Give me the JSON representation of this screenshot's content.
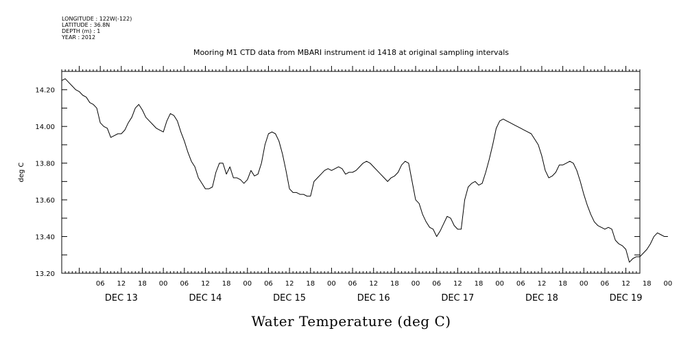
{
  "meta": {
    "longitude": "LONGITUDE : 122W(-122)",
    "latitude": "LATITUDE : 36.8N",
    "depth": "DEPTH (m) : 1",
    "year": "YEAR : 2012"
  },
  "chart_data": {
    "type": "line",
    "title": "Mooring M1 CTD data from MBARI instrument id 1418 at original sampling intervals",
    "ylabel": "deg C",
    "xlabel": "Water Temperature (deg C)",
    "ylim": [
      13.2,
      14.3
    ],
    "xlim_hours": [
      0,
      165
    ],
    "grid": false,
    "x_start": "DEC 12 2012 19:00",
    "y_tick_labels": [
      "13.20",
      "13.40",
      "13.60",
      "13.80",
      "14.00",
      "14.20"
    ],
    "y_ticks": [
      13.2,
      13.4,
      13.6,
      13.8,
      14.0,
      14.2
    ],
    "x_tick_hour_labels": [
      "06",
      "12",
      "18",
      "00",
      "06",
      "12",
      "18",
      "00",
      "06",
      "12",
      "18",
      "00",
      "06",
      "12",
      "18",
      "00",
      "06",
      "12",
      "18",
      "00",
      "06",
      "12",
      "18",
      "00",
      "06",
      "12",
      "18",
      "00"
    ],
    "day_labels": [
      "DEC 13",
      "DEC 14",
      "DEC 15",
      "DEC 16",
      "DEC 17",
      "DEC 18",
      "DEC 19"
    ],
    "series": [
      {
        "points": [
          [
            "DEC 12 19:00",
            14.25
          ],
          [
            "DEC 12 20:00",
            14.26
          ],
          [
            "DEC 12 21:00",
            14.24
          ],
          [
            "DEC 12 22:00",
            14.22
          ],
          [
            "DEC 12 23:00",
            14.2
          ],
          [
            "DEC 13 00:00",
            14.19
          ],
          [
            "DEC 13 01:00",
            14.17
          ],
          [
            "DEC 13 02:00",
            14.16
          ],
          [
            "DEC 13 03:00",
            14.13
          ],
          [
            "DEC 13 04:00",
            14.12
          ],
          [
            "DEC 13 05:00",
            14.1
          ],
          [
            "DEC 13 06:00",
            14.02
          ],
          [
            "DEC 13 07:00",
            14.0
          ],
          [
            "DEC 13 08:00",
            13.99
          ],
          [
            "DEC 13 09:00",
            13.94
          ],
          [
            "DEC 13 10:00",
            13.95
          ],
          [
            "DEC 13 11:00",
            13.96
          ],
          [
            "DEC 13 12:00",
            13.96
          ],
          [
            "DEC 13 13:00",
            13.98
          ],
          [
            "DEC 13 14:00",
            14.02
          ],
          [
            "DEC 13 15:00",
            14.05
          ],
          [
            "DEC 13 16:00",
            14.1
          ],
          [
            "DEC 13 17:00",
            14.12
          ],
          [
            "DEC 13 18:00",
            14.09
          ],
          [
            "DEC 13 19:00",
            14.05
          ],
          [
            "DEC 13 20:00",
            14.03
          ],
          [
            "DEC 13 21:00",
            14.01
          ],
          [
            "DEC 13 22:00",
            13.99
          ],
          [
            "DEC 13 23:00",
            13.98
          ],
          [
            "DEC 14 00:00",
            13.97
          ],
          [
            "DEC 14 01:00",
            14.03
          ],
          [
            "DEC 14 02:00",
            14.07
          ],
          [
            "DEC 14 03:00",
            14.06
          ],
          [
            "DEC 14 04:00",
            14.03
          ],
          [
            "DEC 14 05:00",
            13.97
          ],
          [
            "DEC 14 06:00",
            13.92
          ],
          [
            "DEC 14 07:00",
            13.86
          ],
          [
            "DEC 14 08:00",
            13.81
          ],
          [
            "DEC 14 09:00",
            13.78
          ],
          [
            "DEC 14 10:00",
            13.72
          ],
          [
            "DEC 14 11:00",
            13.69
          ],
          [
            "DEC 14 12:00",
            13.66
          ],
          [
            "DEC 14 13:00",
            13.66
          ],
          [
            "DEC 14 14:00",
            13.67
          ],
          [
            "DEC 14 15:00",
            13.75
          ],
          [
            "DEC 14 16:00",
            13.8
          ],
          [
            "DEC 14 17:00",
            13.8
          ],
          [
            "DEC 14 18:00",
            13.74
          ],
          [
            "DEC 14 19:00",
            13.78
          ],
          [
            "DEC 14 20:00",
            13.72
          ],
          [
            "DEC 14 21:00",
            13.72
          ],
          [
            "DEC 14 22:00",
            13.71
          ],
          [
            "DEC 14 23:00",
            13.69
          ],
          [
            "DEC 15 00:00",
            13.71
          ],
          [
            "DEC 15 01:00",
            13.76
          ],
          [
            "DEC 15 02:00",
            13.73
          ],
          [
            "DEC 15 03:00",
            13.74
          ],
          [
            "DEC 15 04:00",
            13.8
          ],
          [
            "DEC 15 05:00",
            13.9
          ],
          [
            "DEC 15 06:00",
            13.96
          ],
          [
            "DEC 15 07:00",
            13.97
          ],
          [
            "DEC 15 08:00",
            13.96
          ],
          [
            "DEC 15 09:00",
            13.92
          ],
          [
            "DEC 15 10:00",
            13.85
          ],
          [
            "DEC 15 11:00",
            13.76
          ],
          [
            "DEC 15 12:00",
            13.66
          ],
          [
            "DEC 15 13:00",
            13.64
          ],
          [
            "DEC 15 14:00",
            13.64
          ],
          [
            "DEC 15 15:00",
            13.63
          ],
          [
            "DEC 15 16:00",
            13.63
          ],
          [
            "DEC 15 17:00",
            13.62
          ],
          [
            "DEC 15 18:00",
            13.62
          ],
          [
            "DEC 15 19:00",
            13.7
          ],
          [
            "DEC 15 20:00",
            13.72
          ],
          [
            "DEC 15 21:00",
            13.74
          ],
          [
            "DEC 15 22:00",
            13.76
          ],
          [
            "DEC 15 23:00",
            13.77
          ],
          [
            "DEC 16 00:00",
            13.76
          ],
          [
            "DEC 16 01:00",
            13.77
          ],
          [
            "DEC 16 02:00",
            13.78
          ],
          [
            "DEC 16 03:00",
            13.77
          ],
          [
            "DEC 16 04:00",
            13.74
          ],
          [
            "DEC 16 05:00",
            13.75
          ],
          [
            "DEC 16 06:00",
            13.75
          ],
          [
            "DEC 16 07:00",
            13.76
          ],
          [
            "DEC 16 08:00",
            13.78
          ],
          [
            "DEC 16 09:00",
            13.8
          ],
          [
            "DEC 16 10:00",
            13.81
          ],
          [
            "DEC 16 11:00",
            13.8
          ],
          [
            "DEC 16 12:00",
            13.78
          ],
          [
            "DEC 16 13:00",
            13.76
          ],
          [
            "DEC 16 14:00",
            13.74
          ],
          [
            "DEC 16 15:00",
            13.72
          ],
          [
            "DEC 16 16:00",
            13.7
          ],
          [
            "DEC 16 17:00",
            13.72
          ],
          [
            "DEC 16 18:00",
            13.73
          ],
          [
            "DEC 16 19:00",
            13.75
          ],
          [
            "DEC 16 20:00",
            13.79
          ],
          [
            "DEC 16 21:00",
            13.81
          ],
          [
            "DEC 16 22:00",
            13.8
          ],
          [
            "DEC 16 23:00",
            13.7
          ],
          [
            "DEC 17 00:00",
            13.6
          ],
          [
            "DEC 17 01:00",
            13.58
          ],
          [
            "DEC 17 02:00",
            13.52
          ],
          [
            "DEC 17 03:00",
            13.48
          ],
          [
            "DEC 17 04:00",
            13.45
          ],
          [
            "DEC 17 05:00",
            13.44
          ],
          [
            "DEC 17 06:00",
            13.4
          ],
          [
            "DEC 17 07:00",
            13.43
          ],
          [
            "DEC 17 08:00",
            13.47
          ],
          [
            "DEC 17 09:00",
            13.51
          ],
          [
            "DEC 17 10:00",
            13.5
          ],
          [
            "DEC 17 11:00",
            13.46
          ],
          [
            "DEC 17 12:00",
            13.44
          ],
          [
            "DEC 17 13:00",
            13.44
          ],
          [
            "DEC 17 14:00",
            13.6
          ],
          [
            "DEC 17 15:00",
            13.67
          ],
          [
            "DEC 17 16:00",
            13.69
          ],
          [
            "DEC 17 17:00",
            13.7
          ],
          [
            "DEC 17 18:00",
            13.68
          ],
          [
            "DEC 17 19:00",
            13.69
          ],
          [
            "DEC 17 20:00",
            13.75
          ],
          [
            "DEC 17 21:00",
            13.82
          ],
          [
            "DEC 17 22:00",
            13.9
          ],
          [
            "DEC 17 23:00",
            13.99
          ],
          [
            "DEC 18 00:00",
            14.03
          ],
          [
            "DEC 18 01:00",
            14.04
          ],
          [
            "DEC 18 02:00",
            14.03
          ],
          [
            "DEC 18 03:00",
            14.02
          ],
          [
            "DEC 18 04:00",
            14.01
          ],
          [
            "DEC 18 05:00",
            14.0
          ],
          [
            "DEC 18 06:00",
            13.99
          ],
          [
            "DEC 18 07:00",
            13.98
          ],
          [
            "DEC 18 08:00",
            13.97
          ],
          [
            "DEC 18 09:00",
            13.96
          ],
          [
            "DEC 18 10:00",
            13.93
          ],
          [
            "DEC 18 11:00",
            13.9
          ],
          [
            "DEC 18 12:00",
            13.84
          ],
          [
            "DEC 18 13:00",
            13.76
          ],
          [
            "DEC 18 14:00",
            13.72
          ],
          [
            "DEC 18 15:00",
            13.73
          ],
          [
            "DEC 18 16:00",
            13.75
          ],
          [
            "DEC 18 17:00",
            13.79
          ],
          [
            "DEC 18 18:00",
            13.79
          ],
          [
            "DEC 18 19:00",
            13.8
          ],
          [
            "DEC 18 20:00",
            13.81
          ],
          [
            "DEC 18 21:00",
            13.8
          ],
          [
            "DEC 18 22:00",
            13.76
          ],
          [
            "DEC 18 23:00",
            13.7
          ],
          [
            "DEC 19 00:00",
            13.63
          ],
          [
            "DEC 19 01:00",
            13.57
          ],
          [
            "DEC 19 02:00",
            13.52
          ],
          [
            "DEC 19 03:00",
            13.48
          ],
          [
            "DEC 19 04:00",
            13.46
          ],
          [
            "DEC 19 05:00",
            13.45
          ],
          [
            "DEC 19 06:00",
            13.44
          ],
          [
            "DEC 19 07:00",
            13.45
          ],
          [
            "DEC 19 08:00",
            13.44
          ],
          [
            "DEC 19 09:00",
            13.38
          ],
          [
            "DEC 19 10:00",
            13.36
          ],
          [
            "DEC 19 11:00",
            13.35
          ],
          [
            "DEC 19 12:00",
            13.33
          ],
          [
            "DEC 19 13:00",
            13.26
          ],
          [
            "DEC 19 14:00",
            13.28
          ],
          [
            "DEC 19 15:00",
            13.29
          ],
          [
            "DEC 19 16:00",
            13.29
          ],
          [
            "DEC 19 17:00",
            13.31
          ],
          [
            "DEC 19 18:00",
            13.33
          ],
          [
            "DEC 19 19:00",
            13.36
          ],
          [
            "DEC 19 20:00",
            13.4
          ],
          [
            "DEC 19 21:00",
            13.42
          ],
          [
            "DEC 19 22:00",
            13.41
          ],
          [
            "DEC 19 23:00",
            13.4
          ],
          [
            "DEC 20 00:00",
            13.4
          ]
        ]
      }
    ]
  }
}
